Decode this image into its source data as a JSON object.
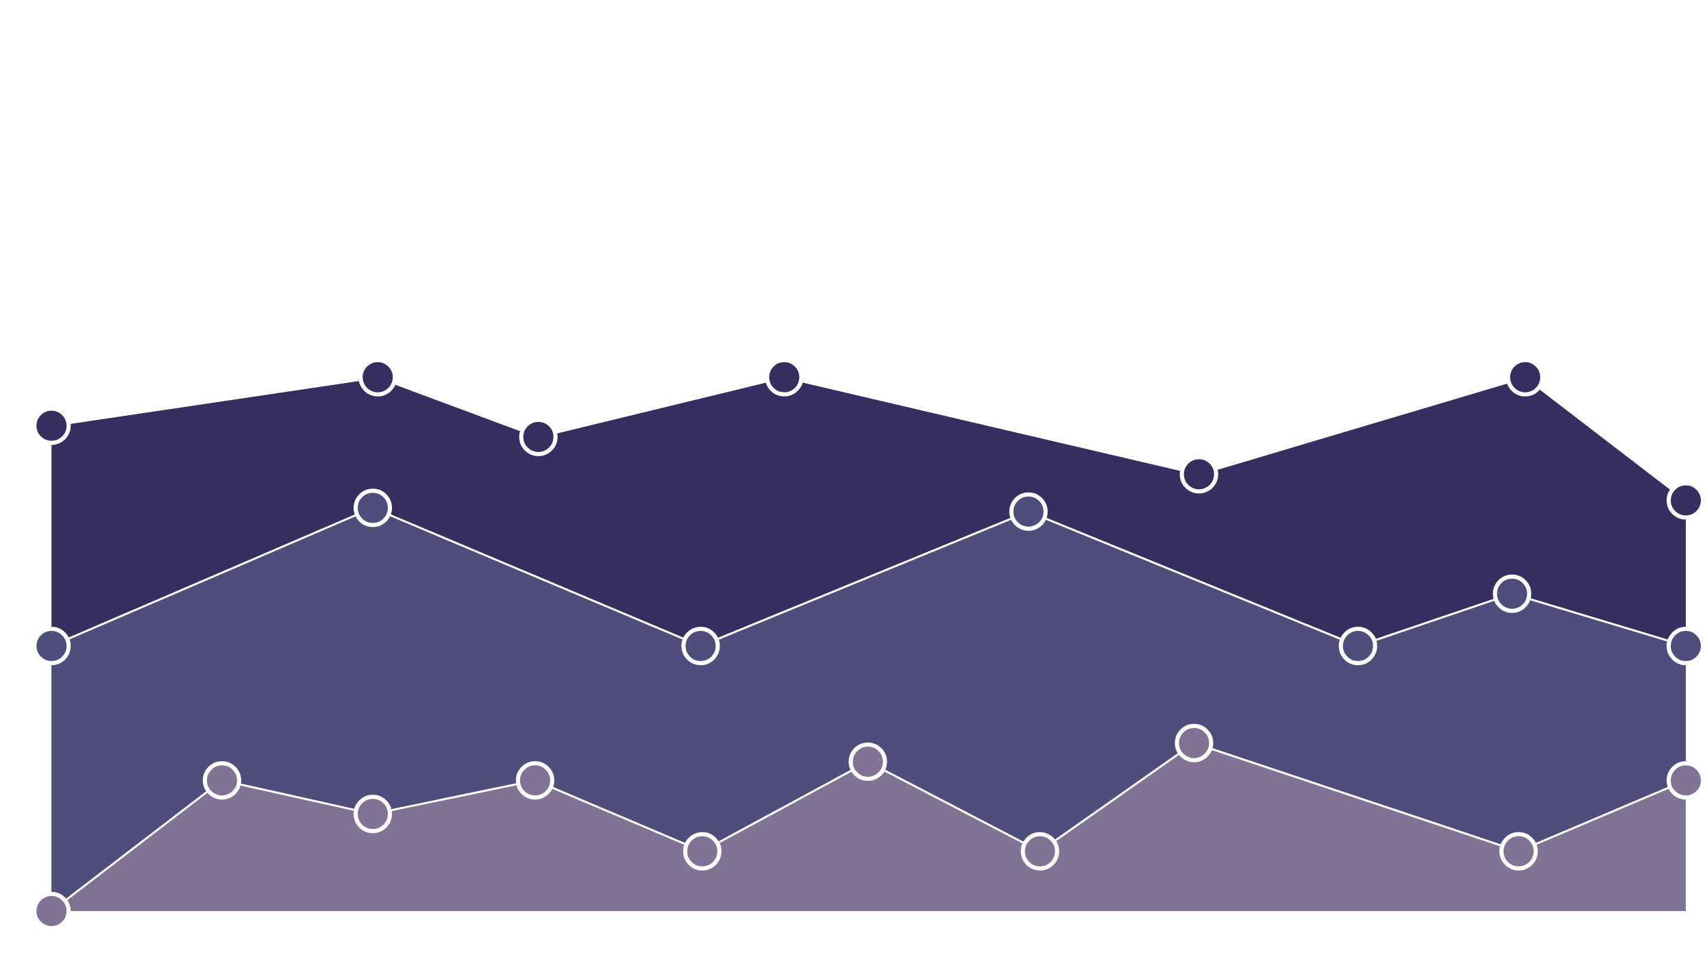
{
  "colors": {
    "background": "#ffffff",
    "marker_ring": "#ffffff"
  },
  "chart_data": {
    "type": "area",
    "grid": false,
    "legend": "none",
    "x_range": [
      0,
      100
    ],
    "y_range": [
      0,
      100
    ],
    "series": [
      {
        "color": "#362e5f",
        "points": [
          {
            "x": 0.3,
            "y": 65.0
          },
          {
            "x": 20.2,
            "y": 71.5
          },
          {
            "x": 30.0,
            "y": 63.5
          },
          {
            "x": 45.0,
            "y": 71.5
          },
          {
            "x": 70.3,
            "y": 58.5
          },
          {
            "x": 90.2,
            "y": 71.5
          },
          {
            "x": 100.0,
            "y": 55.0
          }
        ]
      },
      {
        "color": "#4f4d7c",
        "points": [
          {
            "x": 0.3,
            "y": 35.5
          },
          {
            "x": 19.9,
            "y": 54.0
          },
          {
            "x": 39.9,
            "y": 35.5
          },
          {
            "x": 59.9,
            "y": 53.5
          },
          {
            "x": 80.0,
            "y": 35.5
          },
          {
            "x": 89.4,
            "y": 42.5
          },
          {
            "x": 100.0,
            "y": 35.5
          }
        ]
      },
      {
        "color": "#817394",
        "points": [
          {
            "x": 0.3,
            "y": 0.0
          },
          {
            "x": 10.7,
            "y": 17.5
          },
          {
            "x": 19.9,
            "y": 13.0
          },
          {
            "x": 29.8,
            "y": 17.5
          },
          {
            "x": 40.0,
            "y": 8.0
          },
          {
            "x": 50.1,
            "y": 20.0
          },
          {
            "x": 60.6,
            "y": 8.0
          },
          {
            "x": 70.0,
            "y": 22.5
          },
          {
            "x": 89.8,
            "y": 8.0
          },
          {
            "x": 100.0,
            "y": 17.5
          }
        ]
      }
    ]
  }
}
